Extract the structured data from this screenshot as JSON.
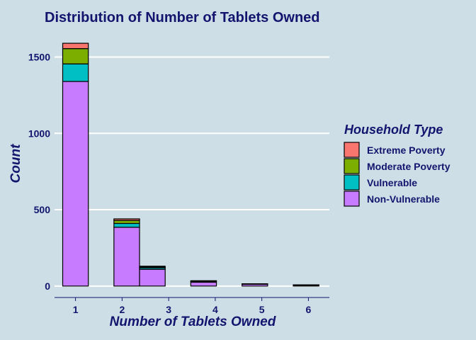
{
  "chart_data": {
    "type": "bar",
    "stacked": true,
    "title": "Distribution of Number of Tablets Owned",
    "xlabel": "Number of Tablets Owned",
    "ylabel": "Count",
    "x_ticks": [
      1,
      2,
      3,
      4,
      5,
      6
    ],
    "y_ticks": [
      0,
      500,
      1000,
      1500
    ],
    "xlim": [
      0.55,
      6.45
    ],
    "ylim": [
      -75,
      1660
    ],
    "bin_width": 0.55,
    "legend": {
      "title": "Household Type",
      "position": "right"
    },
    "colors": {
      "background": "#cddee6",
      "text": "#14146e",
      "grid": "#ffffff",
      "bar_outline": "#000000"
    },
    "series": [
      {
        "name": "Extreme Poverty",
        "color": "#f8766d",
        "bins": [
          {
            "x": 1.0,
            "value": 35
          },
          {
            "x": 1.55,
            "value": 0
          },
          {
            "x": 2.1,
            "value": 10
          },
          {
            "x": 2.65,
            "value": 5
          },
          {
            "x": 3.2,
            "value": 0
          },
          {
            "x": 3.75,
            "value": 2
          },
          {
            "x": 4.3,
            "value": 0
          },
          {
            "x": 4.85,
            "value": 0
          },
          {
            "x": 5.4,
            "value": 0
          },
          {
            "x": 5.95,
            "value": 0
          }
        ]
      },
      {
        "name": "Moderate Poverty",
        "color": "#7cae00",
        "bins": [
          {
            "x": 1.0,
            "value": 100
          },
          {
            "x": 1.55,
            "value": 0
          },
          {
            "x": 2.1,
            "value": 20
          },
          {
            "x": 2.65,
            "value": 5
          },
          {
            "x": 3.2,
            "value": 0
          },
          {
            "x": 3.75,
            "value": 3
          },
          {
            "x": 4.3,
            "value": 0
          },
          {
            "x": 4.85,
            "value": 1
          },
          {
            "x": 5.4,
            "value": 0
          },
          {
            "x": 5.95,
            "value": 1
          }
        ]
      },
      {
        "name": "Vulnerable",
        "color": "#00bfc4",
        "bins": [
          {
            "x": 1.0,
            "value": 115
          },
          {
            "x": 1.55,
            "value": 0
          },
          {
            "x": 2.1,
            "value": 25
          },
          {
            "x": 2.65,
            "value": 10
          },
          {
            "x": 3.2,
            "value": 0
          },
          {
            "x": 3.75,
            "value": 5
          },
          {
            "x": 4.3,
            "value": 0
          },
          {
            "x": 4.85,
            "value": 2
          },
          {
            "x": 5.4,
            "value": 0
          },
          {
            "x": 5.95,
            "value": 1
          }
        ]
      },
      {
        "name": "Non-Vulnerable",
        "color": "#c77cff",
        "bins": [
          {
            "x": 1.0,
            "value": 1340
          },
          {
            "x": 1.55,
            "value": 0
          },
          {
            "x": 2.1,
            "value": 385
          },
          {
            "x": 2.65,
            "value": 110
          },
          {
            "x": 3.2,
            "value": 0
          },
          {
            "x": 3.75,
            "value": 25
          },
          {
            "x": 4.3,
            "value": 0
          },
          {
            "x": 4.85,
            "value": 12
          },
          {
            "x": 5.4,
            "value": 0
          },
          {
            "x": 5.95,
            "value": 6
          }
        ]
      }
    ]
  }
}
